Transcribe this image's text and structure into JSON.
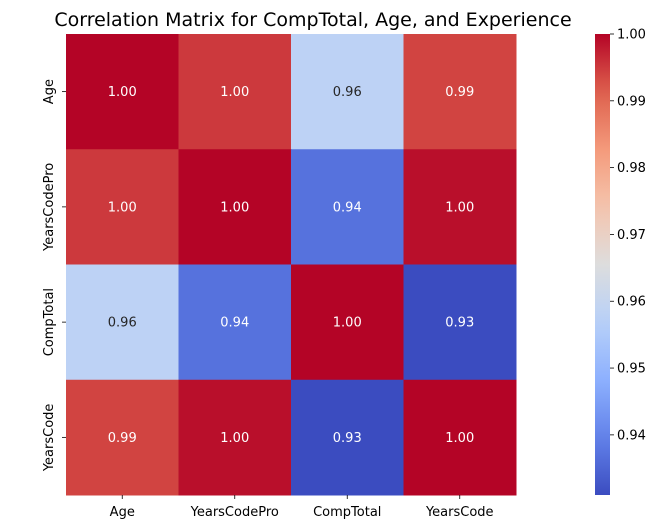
{
  "chart_data": {
    "type": "heatmap",
    "title": "Correlation Matrix for CompTotal, Age, and Experience",
    "row_labels": [
      "Age",
      "YearsCodePro",
      "CompTotal",
      "YearsCode"
    ],
    "col_labels": [
      "Age",
      "YearsCodePro",
      "CompTotal",
      "YearsCode"
    ],
    "values": [
      [
        1.0,
        0.995,
        0.958,
        0.994
      ],
      [
        0.995,
        1.0,
        0.937,
        0.999
      ],
      [
        0.958,
        0.937,
        1.0,
        0.931
      ],
      [
        0.994,
        0.999,
        0.931,
        1.0
      ]
    ],
    "annotations": [
      [
        "1.00",
        "1.00",
        "0.96",
        "0.99"
      ],
      [
        "1.00",
        "1.00",
        "0.94",
        "1.00"
      ],
      [
        "0.96",
        "0.94",
        "1.00",
        "0.93"
      ],
      [
        "0.99",
        "1.00",
        "0.93",
        "1.00"
      ]
    ],
    "colormap": "coolwarm",
    "vmin": 0.931,
    "vmax": 1.0,
    "colorbar_ticks": [
      0.94,
      0.95,
      0.96,
      0.97,
      0.98,
      0.99,
      1.0
    ],
    "colorbar_tick_labels": [
      "0.94",
      "0.95",
      "0.96",
      "0.97",
      "0.98",
      "0.99",
      "1.00"
    ]
  }
}
